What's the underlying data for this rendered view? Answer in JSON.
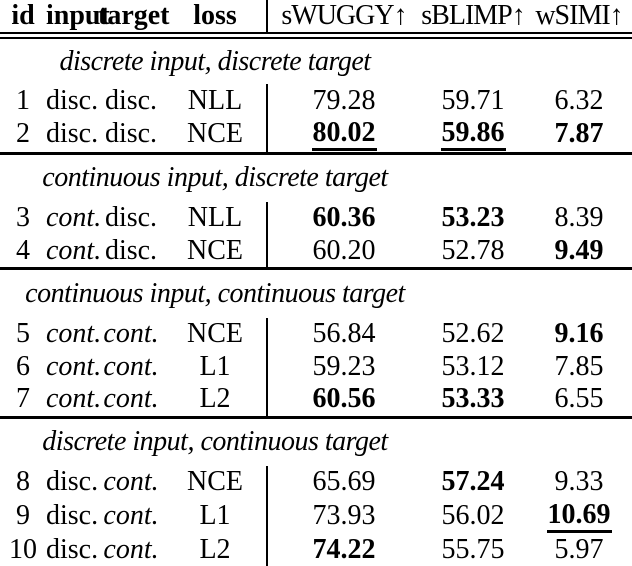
{
  "colors": {
    "text": "#000000",
    "background": "#ffffff",
    "rule": "#000000"
  },
  "table": {
    "columns": [
      {
        "key": "id",
        "label": "id"
      },
      {
        "key": "input",
        "label": "input"
      },
      {
        "key": "target",
        "label": "target"
      },
      {
        "key": "loss",
        "label": "loss"
      },
      {
        "key": "swuggy",
        "label": "sWUGGY↑"
      },
      {
        "key": "sblimp",
        "label": "sBLIMP↑"
      },
      {
        "key": "wsimi",
        "label": "wSIMI↑"
      }
    ],
    "sections": [
      {
        "header": "discrete input, discrete target",
        "rows": [
          {
            "id": "1",
            "input": {
              "v": "disc.",
              "i": false
            },
            "target": {
              "v": "disc.",
              "i": false
            },
            "loss": "NLL",
            "metrics": [
              {
                "v": "79.28",
                "b": false,
                "u": false
              },
              {
                "v": "59.71",
                "b": false,
                "u": false
              },
              {
                "v": "6.32",
                "b": false,
                "u": false
              }
            ]
          },
          {
            "id": "2",
            "input": {
              "v": "disc.",
              "i": false
            },
            "target": {
              "v": "disc.",
              "i": false
            },
            "loss": "NCE",
            "metrics": [
              {
                "v": "80.02",
                "b": true,
                "u": true
              },
              {
                "v": "59.86",
                "b": true,
                "u": true
              },
              {
                "v": "7.87",
                "b": true,
                "u": false
              }
            ]
          }
        ]
      },
      {
        "header": "continuous input, discrete target",
        "rows": [
          {
            "id": "3",
            "input": {
              "v": "cont.",
              "i": true
            },
            "target": {
              "v": "disc.",
              "i": false
            },
            "loss": "NLL",
            "metrics": [
              {
                "v": "60.36",
                "b": true,
                "u": false
              },
              {
                "v": "53.23",
                "b": true,
                "u": false
              },
              {
                "v": "8.39",
                "b": false,
                "u": false
              }
            ]
          },
          {
            "id": "4",
            "input": {
              "v": "cont.",
              "i": true
            },
            "target": {
              "v": "disc.",
              "i": false
            },
            "loss": "NCE",
            "metrics": [
              {
                "v": "60.20",
                "b": false,
                "u": false
              },
              {
                "v": "52.78",
                "b": false,
                "u": false
              },
              {
                "v": "9.49",
                "b": true,
                "u": false
              }
            ]
          }
        ]
      },
      {
        "header": "continuous input, continuous target",
        "rows": [
          {
            "id": "5",
            "input": {
              "v": "cont.",
              "i": true
            },
            "target": {
              "v": "cont.",
              "i": true
            },
            "loss": "NCE",
            "metrics": [
              {
                "v": "56.84",
                "b": false,
                "u": false
              },
              {
                "v": "52.62",
                "b": false,
                "u": false
              },
              {
                "v": "9.16",
                "b": true,
                "u": false
              }
            ]
          },
          {
            "id": "6",
            "input": {
              "v": "cont.",
              "i": true
            },
            "target": {
              "v": "cont.",
              "i": true
            },
            "loss": "L1",
            "metrics": [
              {
                "v": "59.23",
                "b": false,
                "u": false
              },
              {
                "v": "53.12",
                "b": false,
                "u": false
              },
              {
                "v": "7.85",
                "b": false,
                "u": false
              }
            ]
          },
          {
            "id": "7",
            "input": {
              "v": "cont.",
              "i": true
            },
            "target": {
              "v": "cont.",
              "i": true
            },
            "loss": "L2",
            "metrics": [
              {
                "v": "60.56",
                "b": true,
                "u": false
              },
              {
                "v": "53.33",
                "b": true,
                "u": false
              },
              {
                "v": "6.55",
                "b": false,
                "u": false
              }
            ]
          }
        ]
      },
      {
        "header": "discrete input, continuous target",
        "rows": [
          {
            "id": "8",
            "input": {
              "v": "disc.",
              "i": false
            },
            "target": {
              "v": "cont.",
              "i": true
            },
            "loss": "NCE",
            "metrics": [
              {
                "v": "65.69",
                "b": false,
                "u": false
              },
              {
                "v": "57.24",
                "b": true,
                "u": false
              },
              {
                "v": "9.33",
                "b": false,
                "u": false
              }
            ]
          },
          {
            "id": "9",
            "input": {
              "v": "disc.",
              "i": false
            },
            "target": {
              "v": "cont.",
              "i": true
            },
            "loss": "L1",
            "metrics": [
              {
                "v": "73.93",
                "b": false,
                "u": false
              },
              {
                "v": "56.02",
                "b": false,
                "u": false
              },
              {
                "v": "10.69",
                "b": true,
                "u": true
              }
            ]
          },
          {
            "id": "10",
            "input": {
              "v": "disc.",
              "i": false
            },
            "target": {
              "v": "cont.",
              "i": true
            },
            "loss": "L2",
            "metrics": [
              {
                "v": "74.22",
                "b": true,
                "u": false
              },
              {
                "v": "55.75",
                "b": false,
                "u": false
              },
              {
                "v": "5.97",
                "b": false,
                "u": false
              }
            ]
          }
        ]
      }
    ]
  }
}
